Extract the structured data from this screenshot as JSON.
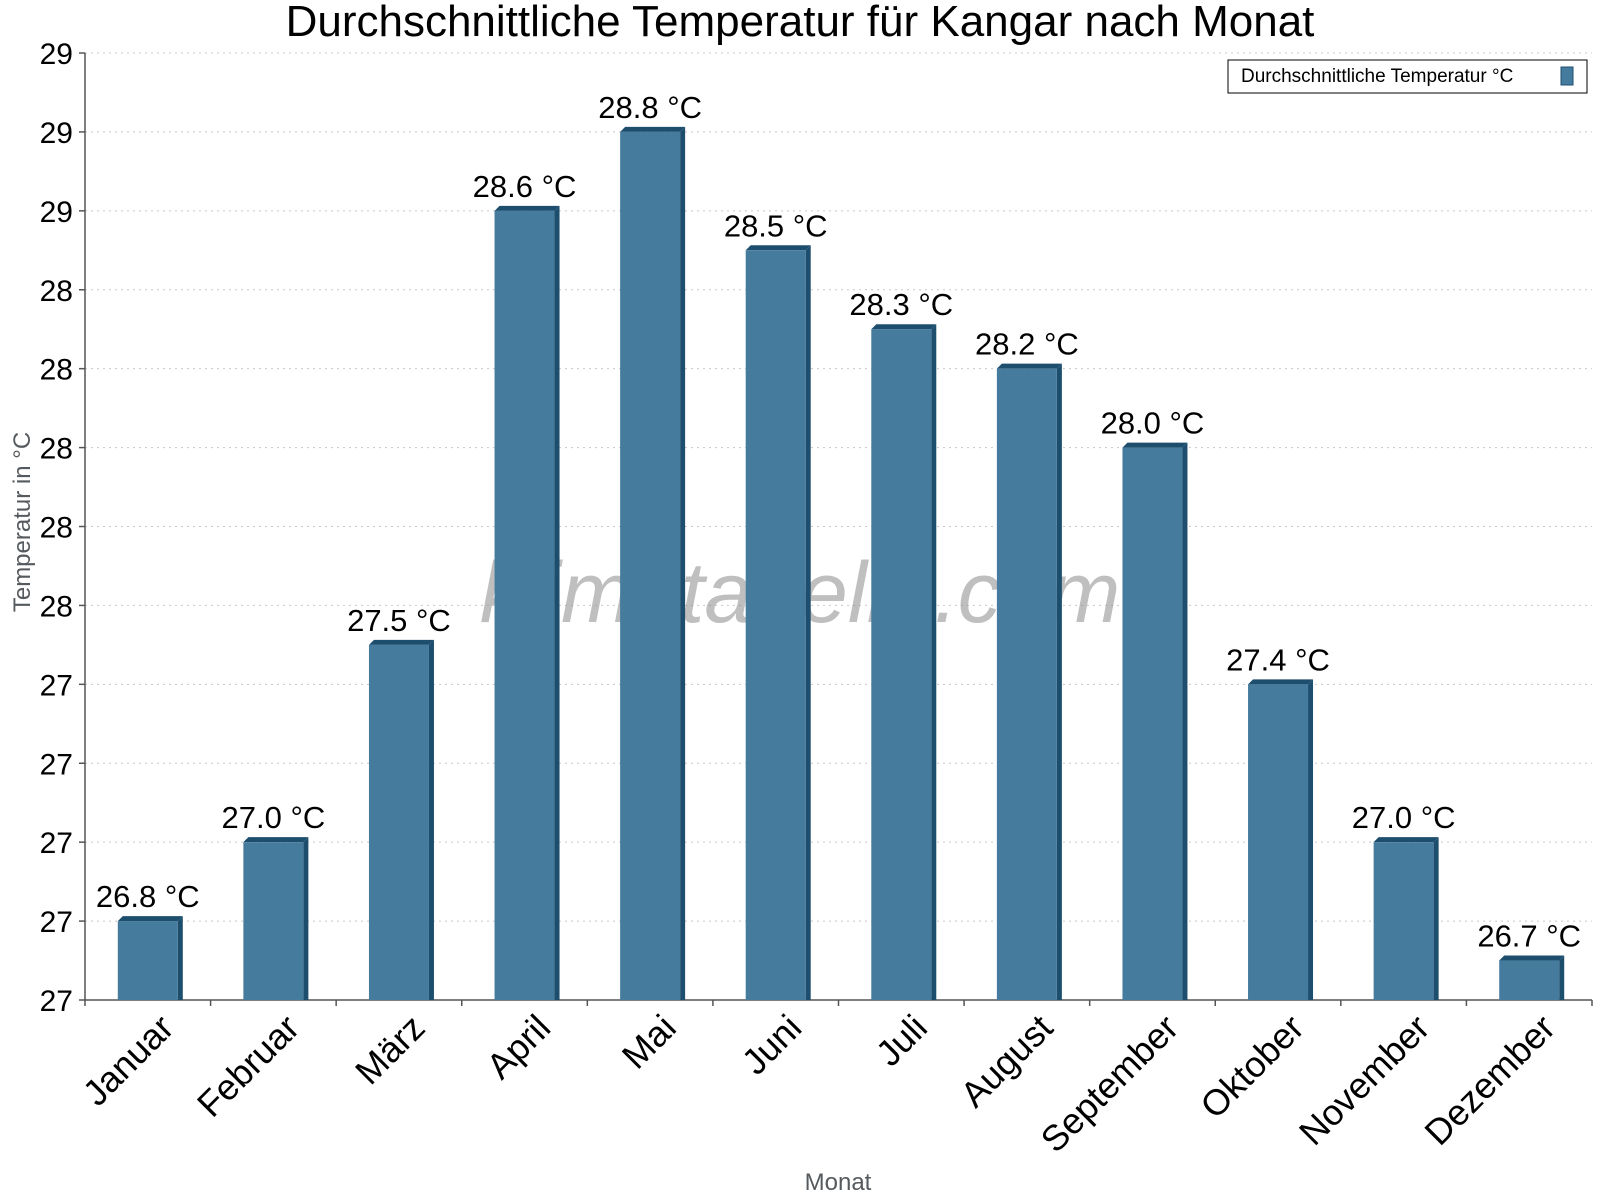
{
  "chart_data": {
    "type": "bar",
    "title": "Durchschnittliche Temperatur für Kangar nach Monat",
    "xlabel": "Monat",
    "ylabel": "Temperatur in °C",
    "categories": [
      "Januar",
      "Februar",
      "März",
      "April",
      "Mai",
      "Juni",
      "Juli",
      "August",
      "September",
      "Oktober",
      "November",
      "Dezember"
    ],
    "series": [
      {
        "name": "Durchschnittliche Temperatur °C",
        "values": [
          26.8,
          27.0,
          27.5,
          28.6,
          28.8,
          28.5,
          28.3,
          28.2,
          28.0,
          27.4,
          27.0,
          26.7
        ],
        "labels": [
          "26.8 °C",
          "27.0 °C",
          "27.5 °C",
          "28.6 °C",
          "28.8 °C",
          "28.5 °C",
          "28.3 °C",
          "28.2 °C",
          "28.0 °C",
          "27.4 °C",
          "27.0 °C",
          "26.7 °C"
        ],
        "color": "#457b9d",
        "edge_color": "#1d4e6e"
      }
    ],
    "ylim": [
      26.6,
      28.8
    ],
    "yticks": [
      26.6,
      26.8,
      27.0,
      27.2,
      27.4,
      27.6,
      27.8,
      28.0,
      28.2,
      28.4,
      28.6,
      28.8,
      29.0
    ],
    "ytick_labels": [
      "27",
      "27",
      "27",
      "27",
      "27",
      "28",
      "28",
      "28",
      "28",
      "28",
      "29",
      "29",
      "29"
    ],
    "grid": true,
    "legend": "top-right",
    "watermark": "klimatabelle.com"
  }
}
